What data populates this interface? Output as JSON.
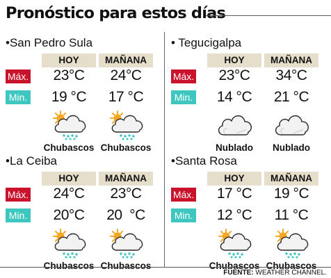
{
  "title": "Pronóstico para estos días",
  "labels": {
    "max": "Máx.",
    "min": "Min."
  },
  "headers": {
    "today": "HOY",
    "tomorrow": "MAÑANA"
  },
  "cities": [
    {
      "name": "•San Pedro Sula",
      "max": [
        "23°C",
        "24°C"
      ],
      "min": [
        "19 °C",
        "17 °C"
      ],
      "icons": [
        "partly-sunny-showers-icon",
        "partly-sunny-showers-icon"
      ],
      "conditions": [
        "Chubascos",
        "Chubascos"
      ]
    },
    {
      "name": "• Tegucigalpa",
      "max": [
        "23°C",
        "34°C"
      ],
      "min": [
        "14 °C",
        "21 °C"
      ],
      "icons": [
        "cloud-icon",
        "cloud-icon"
      ],
      "conditions": [
        "Nublado",
        "Nublado"
      ]
    },
    {
      "name": "•La Ceiba",
      "max": [
        "24°C",
        "23°C"
      ],
      "min": [
        "20°C",
        "20  °C"
      ],
      "icons": [
        "partly-sunny-showers-icon",
        "partly-sunny-showers-icon"
      ],
      "conditions": [
        "Chubascos",
        "Chubascos"
      ]
    },
    {
      "name": "•Santa Rosa",
      "max": [
        "17 °C",
        "19 °C"
      ],
      "min": [
        "12 °C",
        "11 °C"
      ],
      "icons": [
        "partly-sunny-showers-icon",
        "partly-sunny-showers-icon"
      ],
      "conditions": [
        "Chubascos",
        "Chubascos"
      ]
    }
  ],
  "source": {
    "label": "FUENTE:",
    "value": "WEATHER CHANNEL."
  },
  "colors": {
    "max_badge": "#c9122b",
    "min_badge": "#3ec7c0",
    "header_bg": "#e4deca",
    "sun": "#f5a623",
    "rain": "#3ec7c0"
  }
}
